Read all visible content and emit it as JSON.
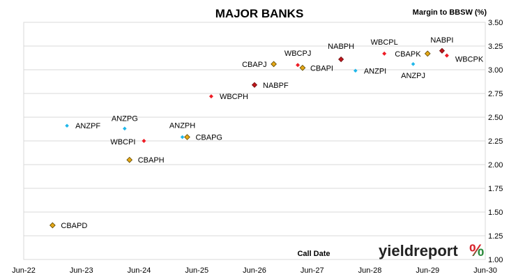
{
  "chart_data": {
    "type": "scatter",
    "title": "MAJOR BANKS",
    "xlabel": "Call Date",
    "ylabel": "Margin to BBSW (%)",
    "x_ticks": [
      "Jun-22",
      "Jun-23",
      "Jun-24",
      "Jun-25",
      "Jun-26",
      "Jun-27",
      "Jun-28",
      "Jun-29",
      "Jun-30"
    ],
    "y_ticks": [
      "1.00",
      "1.25",
      "1.50",
      "1.75",
      "2.00",
      "2.25",
      "2.50",
      "2.75",
      "3.00",
      "3.25",
      "3.50"
    ],
    "xlim": [
      "2022-06",
      "2030-06"
    ],
    "ylim": [
      1.0,
      3.5
    ],
    "grid": "horizontal",
    "legend": "none",
    "colors": {
      "CBA": "#e6a817",
      "NAB": "#c0171c",
      "WBC": "#ee1c25",
      "ANZ": "#1fb7ea"
    },
    "points": [
      {
        "label": "CBAPD",
        "x": "2022-12",
        "y": 1.36,
        "issuer": "CBA"
      },
      {
        "label": "ANZPF",
        "x": "2023-03",
        "y": 2.41,
        "issuer": "ANZ"
      },
      {
        "label": "ANZPG",
        "x": "2024-03",
        "y": 2.38,
        "issuer": "ANZ"
      },
      {
        "label": "CBAPH",
        "x": "2024-04",
        "y": 2.05,
        "issuer": "CBA"
      },
      {
        "label": "WBCPI",
        "x": "2024-07",
        "y": 2.25,
        "issuer": "WBC"
      },
      {
        "label": "ANZPH",
        "x": "2025-03",
        "y": 2.29,
        "issuer": "ANZ"
      },
      {
        "label": "CBAPG",
        "x": "2025-04",
        "y": 2.29,
        "issuer": "CBA"
      },
      {
        "label": "WBCPH",
        "x": "2025-09",
        "y": 2.72,
        "issuer": "WBC"
      },
      {
        "label": "NABPF",
        "x": "2026-06",
        "y": 2.84,
        "issuer": "NAB"
      },
      {
        "label": "CBAPJ",
        "x": "2026-10",
        "y": 3.06,
        "issuer": "CBA"
      },
      {
        "label": "WBCPJ",
        "x": "2027-03",
        "y": 3.05,
        "issuer": "WBC"
      },
      {
        "label": "CBAPI",
        "x": "2027-04",
        "y": 3.02,
        "issuer": "CBA"
      },
      {
        "label": "NABPH",
        "x": "2027-12",
        "y": 3.11,
        "issuer": "NAB"
      },
      {
        "label": "ANZPI",
        "x": "2028-03",
        "y": 2.99,
        "issuer": "ANZ"
      },
      {
        "label": "WBCPL",
        "x": "2028-09",
        "y": 3.17,
        "issuer": "WBC"
      },
      {
        "label": "ANZPJ",
        "x": "2029-03",
        "y": 3.06,
        "issuer": "ANZ"
      },
      {
        "label": "CBAPK",
        "x": "2029-06",
        "y": 3.17,
        "issuer": "CBA"
      },
      {
        "label": "NABPI",
        "x": "2029-09",
        "y": 3.2,
        "issuer": "NAB"
      },
      {
        "label": "WBCPK",
        "x": "2029-10",
        "y": 3.15,
        "issuer": "WBC"
      }
    ]
  },
  "watermark": {
    "text": "yieldreport",
    "symbol": "%",
    "symbol_colors": [
      "#d8242c",
      "#2e8b3e"
    ]
  }
}
